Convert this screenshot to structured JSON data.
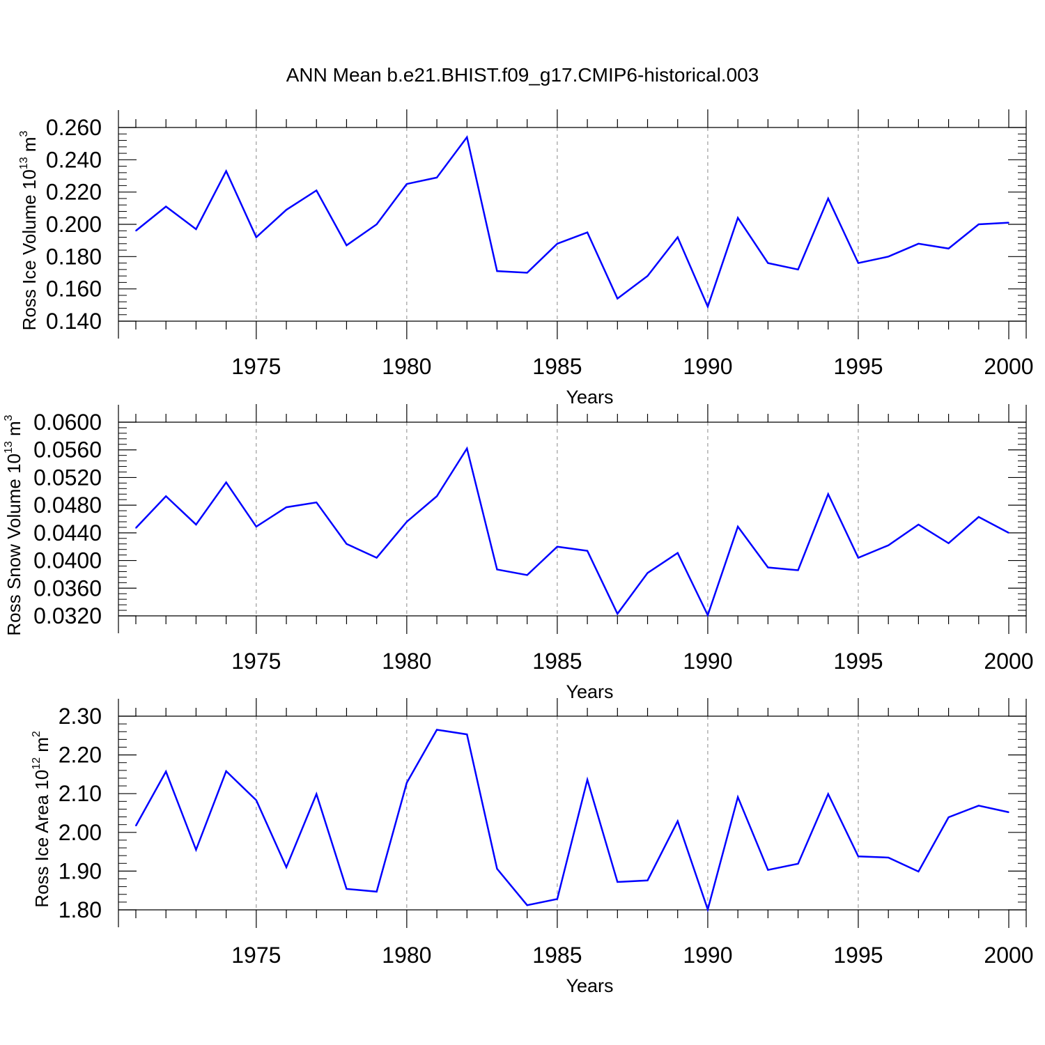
{
  "title": "ANN Mean b.e21.BHIST.f09_g17.CMIP6-historical.003",
  "colors": {
    "series": "#0000ff",
    "axis": "#000000",
    "grid": "#888888"
  },
  "chart_data": [
    {
      "type": "line",
      "title": "",
      "xlabel": "Years",
      "ylabel_text": "Ross Ice Volume 10",
      "ylabel_exp": "13",
      "ylabel_unit": " m",
      "ylabel_unit_exp": "3",
      "xlim": [
        1971,
        2000
      ],
      "ylim": [
        0.14,
        0.26
      ],
      "xticks": [
        1975,
        1980,
        1985,
        1990,
        1995,
        2000
      ],
      "yticks": [
        "0.140",
        "0.160",
        "0.180",
        "0.200",
        "0.220",
        "0.240",
        "0.260"
      ],
      "grid_x": [
        1975,
        1980,
        1985,
        1990,
        1995
      ],
      "series": [
        {
          "name": "Ross Ice Volume",
          "x": [
            1971,
            1972,
            1973,
            1974,
            1975,
            1976,
            1977,
            1978,
            1979,
            1980,
            1981,
            1982,
            1983,
            1984,
            1985,
            1986,
            1987,
            1988,
            1989,
            1990,
            1991,
            1992,
            1993,
            1994,
            1995,
            1996,
            1997,
            1998,
            1999,
            2000
          ],
          "values": [
            0.196,
            0.211,
            0.197,
            0.233,
            0.192,
            0.209,
            0.221,
            0.187,
            0.2,
            0.225,
            0.229,
            0.254,
            0.171,
            0.17,
            0.188,
            0.195,
            0.154,
            0.168,
            0.192,
            0.149,
            0.204,
            0.176,
            0.172,
            0.216,
            0.176,
            0.18,
            0.188,
            0.185,
            0.2,
            0.201
          ]
        }
      ]
    },
    {
      "type": "line",
      "title": "",
      "xlabel": "Years",
      "ylabel_text": "Ross Snow Volume 10",
      "ylabel_exp": "13",
      "ylabel_unit": " m",
      "ylabel_unit_exp": "3",
      "xlim": [
        1971,
        2000
      ],
      "ylim": [
        0.032,
        0.06
      ],
      "xticks": [
        1975,
        1980,
        1985,
        1990,
        1995,
        2000
      ],
      "yticks": [
        "0.0320",
        "0.0360",
        "0.0400",
        "0.0440",
        "0.0480",
        "0.0520",
        "0.0560",
        "0.0600"
      ],
      "grid_x": [
        1975,
        1980,
        1985,
        1990,
        1995
      ],
      "series": [
        {
          "name": "Ross Snow Volume",
          "x": [
            1971,
            1972,
            1973,
            1974,
            1975,
            1976,
            1977,
            1978,
            1979,
            1980,
            1981,
            1982,
            1983,
            1984,
            1985,
            1986,
            1987,
            1988,
            1989,
            1990,
            1991,
            1992,
            1993,
            1994,
            1995,
            1996,
            1997,
            1998,
            1999,
            2000
          ],
          "values": [
            0.0447,
            0.0493,
            0.0452,
            0.0513,
            0.0449,
            0.0477,
            0.0484,
            0.0424,
            0.0404,
            0.0456,
            0.0493,
            0.0562,
            0.0387,
            0.0379,
            0.042,
            0.0414,
            0.0323,
            0.0382,
            0.0411,
            0.0321,
            0.0449,
            0.039,
            0.0386,
            0.0496,
            0.0404,
            0.0422,
            0.0452,
            0.0425,
            0.0463,
            0.044
          ]
        }
      ]
    },
    {
      "type": "line",
      "title": "",
      "xlabel": "Years",
      "ylabel_text": "Ross Ice Area 10",
      "ylabel_exp": "12",
      "ylabel_unit": " m",
      "ylabel_unit_exp": "2",
      "xlim": [
        1971,
        2000
      ],
      "ylim": [
        1.8,
        2.3
      ],
      "xticks": [
        1975,
        1980,
        1985,
        1990,
        1995,
        2000
      ],
      "yticks": [
        "1.80",
        "1.90",
        "2.00",
        "2.10",
        "2.20",
        "2.30"
      ],
      "grid_x": [
        1975,
        1980,
        1985,
        1990,
        1995
      ],
      "series": [
        {
          "name": "Ross Ice Area",
          "x": [
            1971,
            1972,
            1973,
            1974,
            1975,
            1976,
            1977,
            1978,
            1979,
            1980,
            1981,
            1982,
            1983,
            1984,
            1985,
            1986,
            1987,
            1988,
            1989,
            1990,
            1991,
            1992,
            1993,
            1994,
            1995,
            1996,
            1997,
            1998,
            1999,
            2000
          ],
          "values": [
            2.017,
            2.157,
            1.955,
            2.158,
            2.083,
            1.91,
            2.099,
            1.854,
            1.847,
            2.128,
            2.265,
            2.253,
            1.906,
            1.812,
            1.828,
            2.136,
            1.872,
            1.876,
            2.029,
            1.801,
            2.091,
            1.903,
            1.919,
            2.099,
            1.938,
            1.935,
            1.899,
            2.039,
            2.069,
            2.052
          ]
        }
      ]
    }
  ]
}
